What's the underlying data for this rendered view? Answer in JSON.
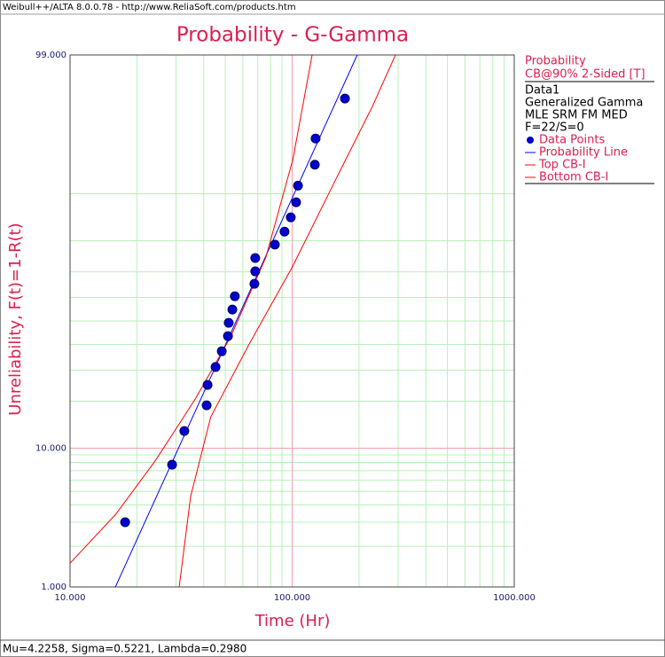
{
  "window_title": "Weibull++/ALTA 8.0.0.78 - http://www.ReliaSoft.com/products.htm",
  "status": "Mu=4.2258, Sigma=0.5221, Lambda=0.2980",
  "chart_data": {
    "type": "scatter",
    "title": "Probability - G-Gamma",
    "x_label": "Time (Hr)",
    "y_label": "Unreliability, F(t)=1-R(t)",
    "x_scale": "log",
    "y_scale": "logit",
    "xlim": [
      10,
      1000
    ],
    "ylim": [
      1,
      99
    ],
    "xticks": [
      {
        "value": 10,
        "label": "10.000"
      },
      {
        "value": 100,
        "label": "100.000"
      },
      {
        "value": 1000,
        "label": "1000.000"
      }
    ],
    "yticks": [
      {
        "value": 1,
        "label": "1.000"
      },
      {
        "value": 10,
        "label": "10.000"
      },
      {
        "value": 99,
        "label": "99.000"
      }
    ],
    "xminor": [
      20,
      30,
      40,
      50,
      60,
      70,
      80,
      90,
      200,
      300,
      400,
      500,
      600,
      700,
      800,
      900
    ],
    "yminor": [
      2,
      3,
      4,
      5,
      6,
      7,
      8,
      9,
      20,
      30,
      40,
      50,
      60,
      70,
      80,
      90
    ],
    "grid": true,
    "grid_color": "#b8f0b8",
    "major_grid_color": "#f4a0b0",
    "text_color": "#dc1e50",
    "legend_title": "Probability",
    "legend_subtitle": "CB@90% 2-Sided [T]",
    "info": [
      "Data1",
      "Generalized Gamma",
      "MLE SRM FM MED",
      "F=22/S=0"
    ],
    "series": [
      {
        "name": "Data Points",
        "kind": "points",
        "color": "#0000cc",
        "x": [
          17.7,
          28.8,
          32.7,
          41.2,
          41.6,
          45.2,
          48.2,
          51.4,
          51.8,
          53.8,
          55.2,
          67.6,
          68.2,
          68.2,
          83.6,
          92.4,
          98.6,
          104.2,
          106.2,
          126.5,
          127.5,
          172.9
        ],
        "values": [
          3.0,
          7.7,
          13.0,
          18.9,
          24.9,
          31.1,
          37.2,
          43.5,
          49.2,
          54.9,
          60.5,
          65.5,
          70.2,
          74.8,
          78.9,
          82.4,
          85.7,
          88.6,
          91.2,
          93.7,
          95.9,
          97.9
        ]
      },
      {
        "name": "Probability Line",
        "kind": "line",
        "color": "#0000ff",
        "x": [
          16.0,
          196.3
        ],
        "values": [
          1,
          99
        ]
      },
      {
        "name": "Top CB-I",
        "kind": "line",
        "color": "#ff0000",
        "x": [
          10,
          16.0,
          24.2,
          36.6,
          52.8,
          76.2,
          100.7,
          123.0
        ],
        "values": [
          1.5,
          3.4,
          8.2,
          20.6,
          43.1,
          75.1,
          94.2,
          99
        ]
      },
      {
        "name": "Bottom CB-I",
        "kind": "line",
        "color": "#ff0000",
        "x": [
          31.0,
          34.9,
          43.0,
          63.4,
          100.7,
          159.0,
          229.7,
          291.8
        ],
        "values": [
          1,
          4.6,
          16.0,
          39.4,
          72.1,
          92.3,
          97.6,
          99
        ]
      }
    ]
  }
}
